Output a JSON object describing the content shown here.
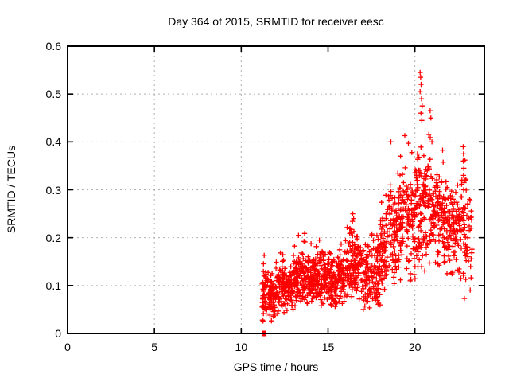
{
  "figure": {
    "background_color": "#ffffff",
    "text_color": "#000000"
  },
  "chart_data": {
    "type": "scatter",
    "title": "Day 364 of 2015, SRMTID for receiver eesc",
    "xlabel": "GPS time / hours",
    "ylabel": "SRMTID / TECUs",
    "xlim": [
      0,
      24
    ],
    "ylim": [
      0,
      0.6
    ],
    "xtick_values": [
      0,
      5,
      10,
      15,
      20
    ],
    "xtick_labels": [
      "0",
      "5",
      "10",
      "15",
      "20"
    ],
    "ytick_values": [
      0,
      0.1,
      0.2,
      0.3,
      0.4,
      0.5,
      0.6
    ],
    "ytick_labels": [
      "0",
      "0.1",
      "0.2",
      "0.3",
      "0.4",
      "0.5",
      "0.6"
    ],
    "grid": true,
    "grid_color": "#b0b0b0",
    "border_color": "#000000",
    "marker": "plus",
    "marker_color": "#ff0000",
    "legend": "none",
    "data_time_range": [
      11.2,
      23.3
    ],
    "seed": 1337,
    "clusters": [
      {
        "t0": 11.2,
        "t1": 11.5,
        "n": 50,
        "mean": 0.085,
        "sd": 0.032,
        "min": 0.02,
        "max": 0.165
      },
      {
        "t0": 11.5,
        "t1": 12.0,
        "n": 70,
        "mean": 0.075,
        "sd": 0.025,
        "min": 0.025,
        "max": 0.15
      },
      {
        "t0": 12.0,
        "t1": 12.5,
        "n": 70,
        "mean": 0.1,
        "sd": 0.03,
        "min": 0.04,
        "max": 0.17
      },
      {
        "t0": 12.5,
        "t1": 13.0,
        "n": 70,
        "mean": 0.095,
        "sd": 0.025,
        "min": 0.045,
        "max": 0.16
      },
      {
        "t0": 13.0,
        "t1": 13.5,
        "n": 70,
        "mean": 0.11,
        "sd": 0.03,
        "min": 0.05,
        "max": 0.2
      },
      {
        "t0": 13.5,
        "t1": 14.0,
        "n": 70,
        "mean": 0.12,
        "sd": 0.03,
        "min": 0.055,
        "max": 0.21
      },
      {
        "t0": 14.0,
        "t1": 14.5,
        "n": 70,
        "mean": 0.115,
        "sd": 0.025,
        "min": 0.06,
        "max": 0.19
      },
      {
        "t0": 14.5,
        "t1": 15.0,
        "n": 70,
        "mean": 0.11,
        "sd": 0.03,
        "min": 0.035,
        "max": 0.18
      },
      {
        "t0": 15.0,
        "t1": 15.5,
        "n": 70,
        "mean": 0.105,
        "sd": 0.028,
        "min": 0.045,
        "max": 0.17
      },
      {
        "t0": 15.5,
        "t1": 16.0,
        "n": 70,
        "mean": 0.12,
        "sd": 0.03,
        "min": 0.06,
        "max": 0.19
      },
      {
        "t0": 16.0,
        "t1": 16.5,
        "n": 70,
        "mean": 0.145,
        "sd": 0.04,
        "min": 0.07,
        "max": 0.25
      },
      {
        "t0": 16.5,
        "t1": 17.0,
        "n": 70,
        "mean": 0.145,
        "sd": 0.035,
        "min": 0.07,
        "max": 0.22
      },
      {
        "t0": 17.0,
        "t1": 17.5,
        "n": 65,
        "mean": 0.115,
        "sd": 0.035,
        "min": 0.05,
        "max": 0.19
      },
      {
        "t0": 17.5,
        "t1": 18.0,
        "n": 65,
        "mean": 0.125,
        "sd": 0.04,
        "min": 0.05,
        "max": 0.22
      },
      {
        "t0": 18.0,
        "t1": 18.5,
        "n": 65,
        "mean": 0.16,
        "sd": 0.05,
        "min": 0.07,
        "max": 0.3
      },
      {
        "t0": 18.5,
        "t1": 19.0,
        "n": 65,
        "mean": 0.2,
        "sd": 0.055,
        "min": 0.1,
        "max": 0.41
      },
      {
        "t0": 19.0,
        "t1": 19.5,
        "n": 65,
        "mean": 0.23,
        "sd": 0.06,
        "min": 0.1,
        "max": 0.42
      },
      {
        "t0": 19.5,
        "t1": 20.0,
        "n": 65,
        "mean": 0.24,
        "sd": 0.06,
        "min": 0.11,
        "max": 0.42
      },
      {
        "t0": 20.0,
        "t1": 20.5,
        "n": 75,
        "mean": 0.27,
        "sd": 0.08,
        "min": 0.11,
        "max": 0.5
      },
      {
        "t0": 20.5,
        "t1": 21.0,
        "n": 70,
        "mean": 0.26,
        "sd": 0.07,
        "min": 0.12,
        "max": 0.47
      },
      {
        "t0": 21.0,
        "t1": 21.5,
        "n": 65,
        "mean": 0.245,
        "sd": 0.05,
        "min": 0.13,
        "max": 0.37
      },
      {
        "t0": 21.5,
        "t1": 22.0,
        "n": 65,
        "mean": 0.235,
        "sd": 0.055,
        "min": 0.1,
        "max": 0.4
      },
      {
        "t0": 22.0,
        "t1": 22.5,
        "n": 65,
        "mean": 0.225,
        "sd": 0.05,
        "min": 0.12,
        "max": 0.35
      },
      {
        "t0": 22.5,
        "t1": 23.0,
        "n": 55,
        "mean": 0.22,
        "sd": 0.06,
        "min": 0.1,
        "max": 0.39
      },
      {
        "t0": 23.0,
        "t1": 23.3,
        "n": 25,
        "mean": 0.185,
        "sd": 0.05,
        "min": 0.09,
        "max": 0.3
      }
    ],
    "notable_points": [
      [
        11.32,
        0.163
      ],
      [
        12.25,
        0.168
      ],
      [
        13.3,
        0.205
      ],
      [
        13.65,
        0.209
      ],
      [
        14.5,
        0.195
      ],
      [
        16.42,
        0.25
      ],
      [
        16.47,
        0.24
      ],
      [
        18.62,
        0.4
      ],
      [
        19.42,
        0.413
      ],
      [
        20.3,
        0.545
      ],
      [
        20.33,
        0.535
      ],
      [
        20.36,
        0.52
      ],
      [
        20.3,
        0.505
      ],
      [
        20.38,
        0.49
      ],
      [
        20.42,
        0.475
      ],
      [
        20.35,
        0.46
      ],
      [
        20.4,
        0.445
      ],
      [
        20.88,
        0.465
      ],
      [
        20.92,
        0.45
      ],
      [
        22.78,
        0.39
      ],
      [
        22.8,
        0.375
      ],
      [
        22.79,
        0.36
      ],
      [
        22.82,
        0.345
      ],
      [
        22.8,
        0.33
      ],
      [
        22.83,
        0.315
      ],
      [
        22.81,
        0.3
      ],
      [
        22.85,
        0.073
      ]
    ],
    "zero_marker": {
      "x": 11.3,
      "y": 0.0,
      "shape": "filled-square"
    }
  }
}
